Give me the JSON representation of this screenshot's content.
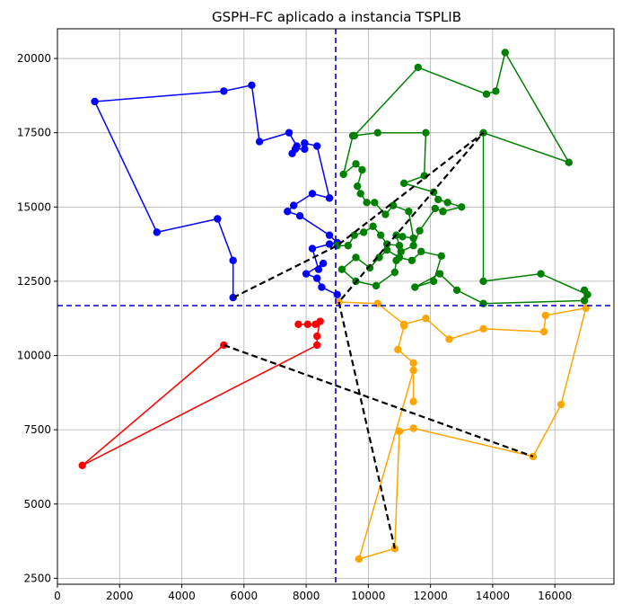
{
  "chart_data": {
    "type": "line",
    "title": "GSPH–FC aplicado a instancia TSPLIB",
    "xlabel": "",
    "ylabel": "",
    "xlim": [
      0,
      17900
    ],
    "ylim": [
      2300,
      21000
    ],
    "xticks": [
      0,
      2000,
      4000,
      6000,
      8000,
      10000,
      12000,
      14000,
      16000
    ],
    "yticks": [
      2500,
      5000,
      7500,
      10000,
      12500,
      15000,
      17500,
      20000
    ],
    "grid": true,
    "legend": "none",
    "colors": {
      "blue": "#0000ff",
      "green": "#008000",
      "red": "#ff0000",
      "orange": "#ffa500",
      "black": "#000000"
    },
    "divider_lines": [
      {
        "orientation": "vertical",
        "x": 8950,
        "color": "#0000cc"
      },
      {
        "orientation": "horizontal",
        "y": 11680,
        "color": "#0000cc"
      }
    ],
    "series": [
      {
        "color": "#0000ff",
        "points": [
          [
            9000,
            12050
          ],
          [
            8500,
            12300
          ],
          [
            8350,
            12600
          ],
          [
            8000,
            12750
          ],
          [
            8550,
            13100
          ],
          [
            8400,
            12900
          ],
          [
            8200,
            13600
          ],
          [
            8750,
            13750
          ],
          [
            9000,
            13800
          ],
          [
            8750,
            14050
          ],
          [
            7800,
            14700
          ],
          [
            7400,
            14850
          ],
          [
            7600,
            15050
          ],
          [
            8200,
            15450
          ],
          [
            8750,
            15300
          ],
          [
            8350,
            17050
          ],
          [
            7950,
            17150
          ],
          [
            7950,
            16950
          ],
          [
            7650,
            16950
          ],
          [
            7550,
            16800
          ],
          [
            7700,
            17050
          ],
          [
            7450,
            17500
          ],
          [
            6500,
            17200
          ],
          [
            6250,
            19100
          ],
          [
            5350,
            18900
          ],
          [
            1200,
            18550
          ],
          [
            3200,
            14150
          ],
          [
            5150,
            14600
          ],
          [
            5650,
            13200
          ],
          [
            5650,
            11950
          ]
        ]
      },
      {
        "color": "#008000",
        "points": [
          [
            9000,
            13700
          ],
          [
            9350,
            13700
          ],
          [
            9550,
            14050
          ],
          [
            9850,
            14150
          ],
          [
            10150,
            14350
          ],
          [
            10400,
            14050
          ],
          [
            10600,
            13750
          ],
          [
            11000,
            13700
          ],
          [
            10900,
            14050
          ],
          [
            11100,
            14000
          ],
          [
            11450,
            13950
          ],
          [
            11300,
            14850
          ],
          [
            10800,
            15050
          ],
          [
            10550,
            14750
          ],
          [
            10200,
            15150
          ],
          [
            9950,
            15150
          ],
          [
            9750,
            15450
          ],
          [
            9650,
            15700
          ],
          [
            9800,
            16250
          ],
          [
            9600,
            16450
          ],
          [
            9200,
            16100
          ],
          [
            9500,
            17400
          ],
          [
            10300,
            17500
          ],
          [
            11850,
            17500
          ],
          [
            11800,
            16050
          ],
          [
            11150,
            15800
          ],
          [
            12100,
            15500
          ],
          [
            12250,
            15250
          ],
          [
            12550,
            15150
          ],
          [
            13000,
            15000
          ],
          [
            12400,
            14850
          ],
          [
            12150,
            14950
          ],
          [
            11650,
            14200
          ],
          [
            11450,
            13700
          ],
          [
            11050,
            13500
          ],
          [
            10900,
            13200
          ],
          [
            10850,
            12800
          ],
          [
            10250,
            12350
          ],
          [
            9600,
            12500
          ],
          [
            9150,
            12900
          ],
          [
            9600,
            13300
          ],
          [
            10050,
            12950
          ],
          [
            10350,
            13300
          ],
          [
            10600,
            13550
          ],
          [
            11000,
            13300
          ],
          [
            11400,
            13200
          ],
          [
            11700,
            13500
          ],
          [
            12350,
            13350
          ],
          [
            12100,
            12500
          ],
          [
            11500,
            12300
          ],
          [
            12300,
            12750
          ],
          [
            12850,
            12200
          ],
          [
            13700,
            11750
          ],
          [
            16950,
            11850
          ],
          [
            16950,
            12200
          ],
          [
            17050,
            12050
          ],
          [
            15550,
            12750
          ],
          [
            13700,
            12500
          ],
          [
            13700,
            17500
          ],
          [
            16450,
            16500
          ],
          [
            14400,
            20200
          ],
          [
            14100,
            18900
          ],
          [
            13800,
            18800
          ],
          [
            11600,
            19700
          ],
          [
            9550,
            17400
          ]
        ]
      },
      {
        "color": "#ff0000",
        "points": [
          [
            7750,
            11050
          ],
          [
            8050,
            11050
          ],
          [
            8300,
            11050
          ],
          [
            8450,
            11150
          ],
          [
            8350,
            10650
          ],
          [
            8350,
            10350
          ],
          [
            800,
            6300
          ],
          [
            5350,
            10350
          ]
        ]
      },
      {
        "color": "#ffa500",
        "points": [
          [
            9050,
            11800
          ],
          [
            10300,
            11750
          ],
          [
            11150,
            11050
          ],
          [
            11850,
            11250
          ],
          [
            12600,
            10550
          ],
          [
            13700,
            10900
          ],
          [
            15650,
            10800
          ],
          [
            15700,
            11350
          ],
          [
            17000,
            11600
          ],
          [
            16200,
            8350
          ],
          [
            15300,
            6600
          ],
          [
            11450,
            7550
          ],
          [
            11000,
            7450
          ],
          [
            10850,
            3500
          ],
          [
            9700,
            3150
          ],
          [
            11450,
            9500
          ],
          [
            11450,
            8450
          ],
          [
            11450,
            9750
          ],
          [
            10950,
            10200
          ],
          [
            11150,
            11000
          ]
        ]
      }
    ],
    "dashed_connectors": {
      "color": "#000000",
      "points": [
        [
          5650,
          11950
        ],
        [
          9000,
          13700
        ],
        [
          13700,
          17500
        ],
        [
          9050,
          11800
        ],
        [
          10850,
          3500
        ]
      ],
      "extra_segment": [
        [
          5350,
          10350
        ],
        [
          15300,
          6600
        ]
      ]
    }
  }
}
